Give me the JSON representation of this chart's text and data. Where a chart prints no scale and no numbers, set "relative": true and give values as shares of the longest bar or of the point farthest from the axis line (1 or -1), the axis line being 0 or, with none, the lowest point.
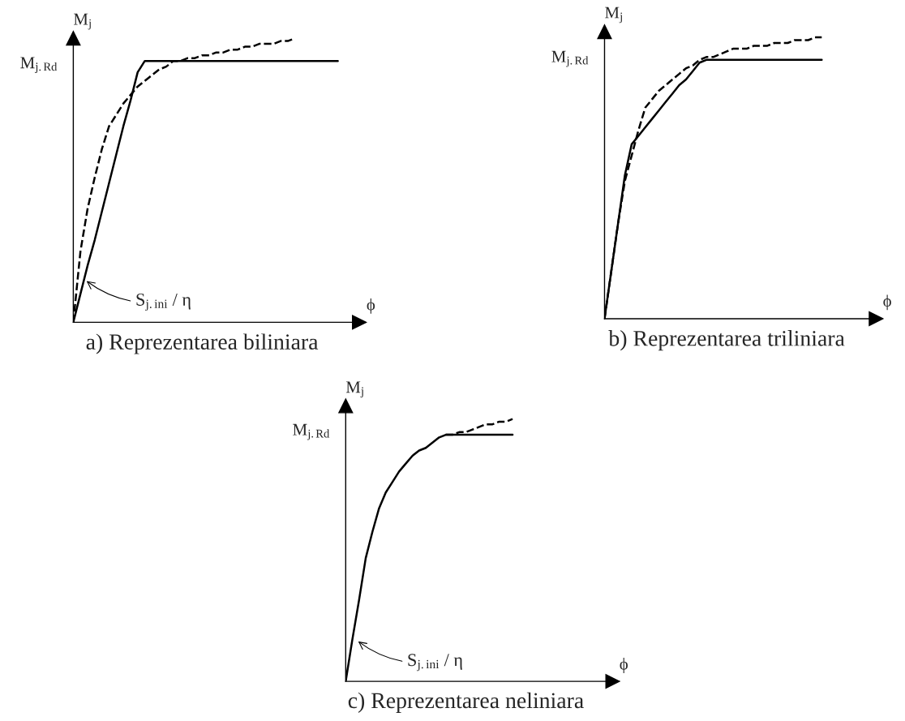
{
  "chart_data": [
    {
      "type": "line",
      "title": "a) Reprezentarea biliniara",
      "xlabel": "ϕ",
      "ylabel": "M$_{j}$",
      "relative": true,
      "ylim": [
        0,
        1
      ],
      "categories": [
        null,
        null,
        null,
        null,
        null,
        null,
        null,
        null,
        null,
        null,
        null,
        null,
        null,
        null,
        null,
        null,
        null,
        null,
        null,
        null,
        null,
        null,
        null,
        null,
        null,
        null,
        null,
        null,
        null,
        null,
        null,
        null,
        null,
        null,
        null,
        null,
        null,
        null,
        null,
        null,
        null
      ],
      "annotations": [
        "M$_{j.Rd}$",
        "S$_{j.ini}$ / η"
      ],
      "series": [
        {
          "color": "#000000",
          "line_style": "solid",
          "values": [
            0,
            0.1,
            0.2,
            0.29,
            0.39,
            0.49,
            0.59,
            0.69,
            0.78,
            0.88,
            0.92,
            0.92,
            0.92,
            0.92,
            0.92,
            0.92,
            0.92,
            0.92,
            0.92,
            0.92,
            0.92,
            0.92,
            0.92,
            0.92,
            0.92,
            0.92,
            0.92,
            0.92,
            0.92,
            0.92,
            0.92,
            0.92,
            0.92,
            0.92,
            0.92,
            0.92,
            0.92,
            0.92,
            null,
            null,
            null
          ]
        },
        {
          "color": "#000000",
          "line_style": "dashed",
          "values": [
            0,
            0.25,
            0.4,
            0.51,
            0.61,
            0.69,
            0.73,
            0.77,
            0.8,
            0.83,
            0.85,
            0.87,
            0.89,
            0.9,
            0.92,
            0.92,
            0.93,
            0.93,
            0.94,
            0.94,
            0.95,
            0.95,
            0.96,
            0.96,
            0.97,
            0.97,
            0.98,
            0.98,
            0.98,
            0.99,
            0.99,
            1.0,
            null,
            null,
            null,
            null,
            null,
            null,
            null,
            null,
            null
          ]
        }
      ]
    },
    {
      "type": "line",
      "title": "b) Reprezentarea triliniara",
      "xlabel": "ϕ",
      "ylabel": "M$_{j}$",
      "relative": true,
      "ylim": [
        0,
        1.02
      ],
      "categories": [
        null,
        null,
        null,
        null,
        null,
        null,
        null,
        null,
        null,
        null,
        null,
        null,
        null,
        null,
        null,
        null,
        null,
        null,
        null,
        null,
        null,
        null,
        null,
        null,
        null,
        null,
        null,
        null,
        null,
        null,
        null,
        null,
        null,
        null,
        null,
        null,
        null,
        null,
        null,
        null,
        null
      ],
      "annotations": [
        "M$_{j.Rd}$"
      ],
      "series": [
        {
          "color": "#000000",
          "line_style": "solid",
          "values": [
            0,
            0.17,
            0.34,
            0.51,
            0.62,
            0.65,
            0.68,
            0.71,
            0.74,
            0.77,
            0.8,
            0.83,
            0.85,
            0.88,
            0.91,
            0.92,
            0.92,
            0.92,
            0.92,
            0.92,
            0.92,
            0.92,
            0.92,
            0.92,
            0.92,
            0.92,
            0.92,
            0.92,
            0.92,
            0.92,
            0.92,
            0.92,
            0.92,
            null,
            null,
            null,
            null,
            null,
            null,
            null,
            null
          ]
        },
        {
          "color": "#000000",
          "line_style": "dashed",
          "values": [
            0,
            0.17,
            0.34,
            0.49,
            0.58,
            0.67,
            0.75,
            0.78,
            0.81,
            0.83,
            0.85,
            0.87,
            0.89,
            0.9,
            0.92,
            0.93,
            0.93,
            0.94,
            0.95,
            0.96,
            0.96,
            0.96,
            0.97,
            0.97,
            0.97,
            0.98,
            0.98,
            0.98,
            0.99,
            0.99,
            0.99,
            1.0,
            1.0,
            null,
            null,
            null,
            null,
            null,
            null,
            null,
            null
          ]
        }
      ]
    },
    {
      "type": "line",
      "title": "c) Reprezentarea neliniara",
      "xlabel": "ϕ",
      "ylabel": "M$_{j}$",
      "relative": true,
      "ylim": [
        0,
        1.05
      ],
      "categories": [
        null,
        null,
        null,
        null,
        null,
        null,
        null,
        null,
        null,
        null,
        null,
        null,
        null,
        null,
        null,
        null,
        null,
        null,
        null,
        null,
        null,
        null,
        null,
        null,
        null,
        null,
        null,
        null,
        null,
        null,
        null,
        null,
        null,
        null,
        null,
        null,
        null,
        null,
        null,
        null,
        null
      ],
      "annotations": [
        "M$_{j.Rd}$",
        "S$_{j.ini}$ / η"
      ],
      "series": [
        {
          "color": "#000000",
          "line_style": "solid",
          "values": [
            0,
            0.16,
            0.31,
            0.47,
            0.57,
            0.66,
            0.72,
            0.76,
            0.8,
            0.83,
            0.86,
            0.88,
            0.89,
            0.91,
            0.93,
            0.94,
            0.94,
            0.94,
            0.94,
            0.94,
            0.94,
            0.94,
            0.94,
            0.94,
            0.94,
            0.94,
            null,
            null,
            null,
            null,
            null,
            null,
            null,
            null,
            null,
            null,
            null,
            null,
            null,
            null,
            null
          ]
        },
        {
          "color": "#000000",
          "line_style": "dashed",
          "values": [
            null,
            null,
            null,
            null,
            null,
            null,
            null,
            null,
            null,
            null,
            null,
            null,
            null,
            null,
            null,
            0.94,
            0.94,
            0.95,
            0.95,
            0.96,
            0.97,
            0.98,
            0.98,
            0.99,
            0.99,
            1.0,
            null,
            null,
            null,
            null,
            null,
            null,
            null,
            null,
            null,
            null,
            null,
            null,
            null,
            null,
            null
          ]
        }
      ]
    }
  ]
}
